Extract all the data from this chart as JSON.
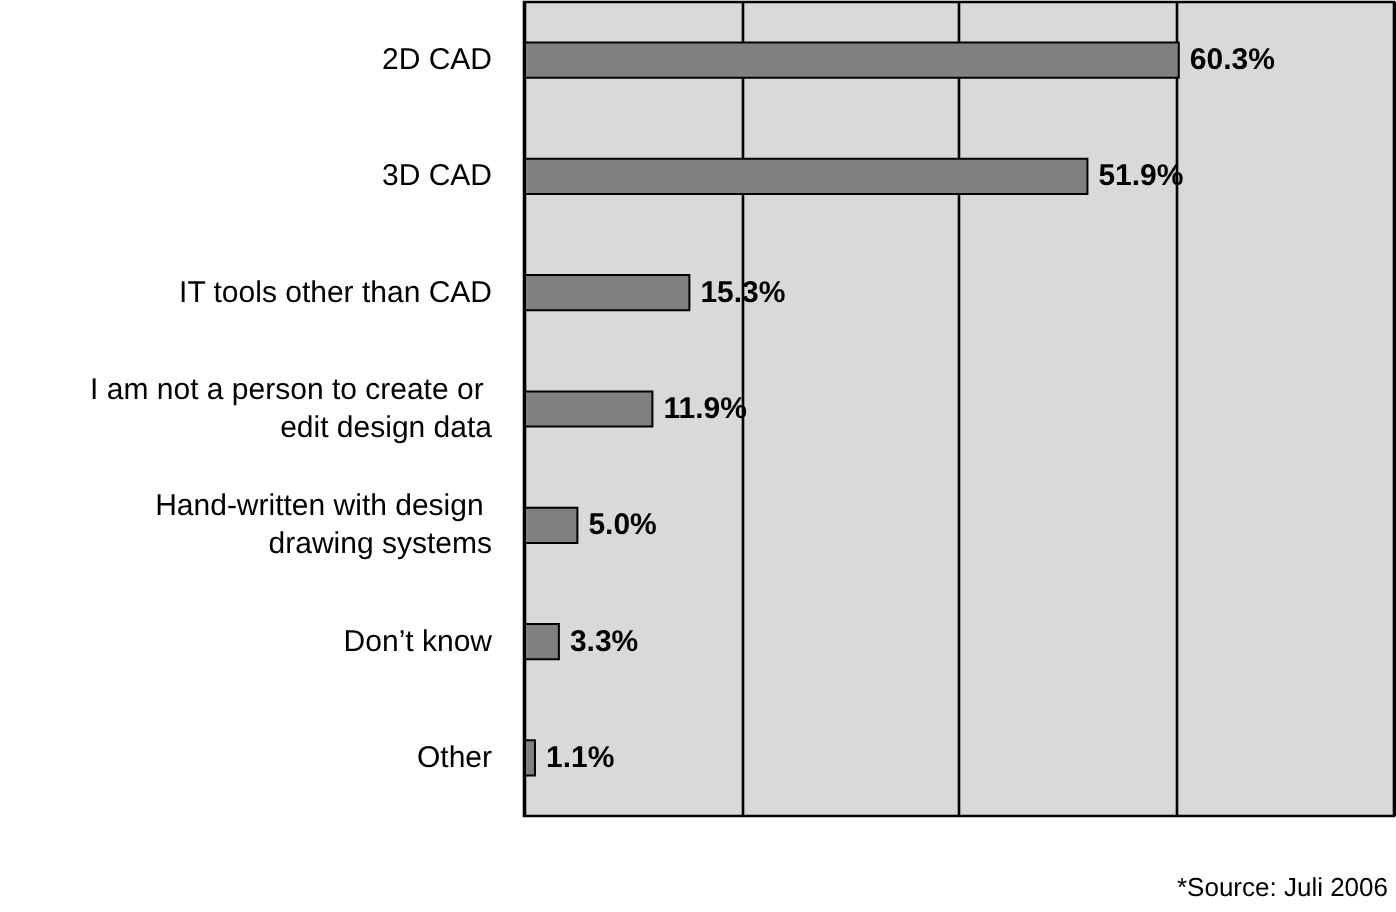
{
  "chart_data": {
    "type": "bar",
    "orientation": "horizontal",
    "categories": [
      "2D CAD",
      "3D CAD",
      "IT tools other than CAD",
      "I am not a person to create or edit design data",
      "Hand-written with design drawing systems",
      "Don’t know",
      "Other"
    ],
    "values": [
      60.3,
      51.9,
      15.3,
      11.9,
      5.0,
      3.3,
      1.1
    ],
    "value_labels": [
      "60.3%",
      "51.9%",
      "15.3%",
      "11.9%",
      "5.0%",
      "3.3%",
      "1.1%"
    ],
    "color": "#808080",
    "xlim": [
      0,
      80
    ],
    "xticks": [
      {
        "value": 0,
        "label": null
      },
      {
        "value": 20,
        "label": null
      },
      {
        "value": 40,
        "label": null
      },
      {
        "value": 60,
        "label": null
      },
      {
        "value": 80,
        "label": null
      }
    ],
    "grid": "x",
    "tick_labels": "y",
    "annotations": [
      "*Source: Juli 2006"
    ]
  }
}
